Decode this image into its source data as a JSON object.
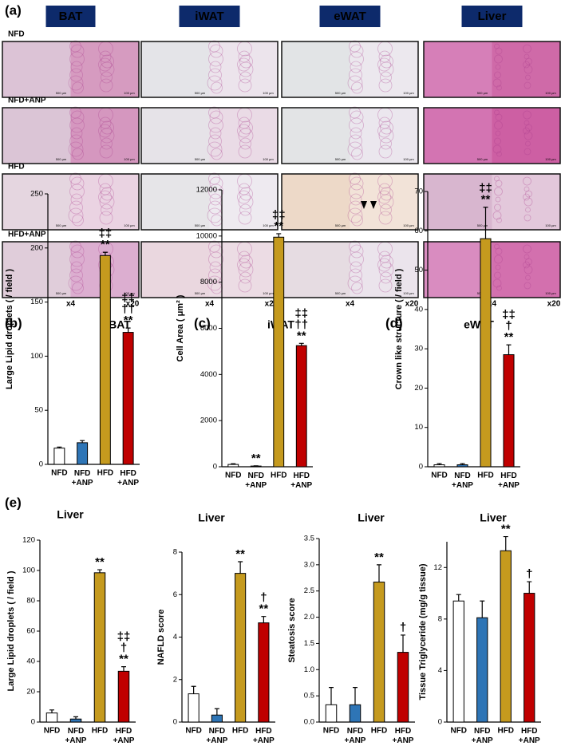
{
  "panel_a": {
    "label": "(a)",
    "columns": [
      "BAT",
      "iWAT",
      "eWAT",
      "Liver"
    ],
    "rows": [
      "NFD",
      "NFD+ANP",
      "HFD",
      "HFD+ANP"
    ],
    "magnifications": [
      "x4",
      "x20"
    ],
    "scale_bars": [
      "500 µm",
      "100 µm"
    ]
  },
  "chart_data": [
    {
      "type": "bar",
      "panel": "(b)",
      "title": "BAT",
      "y_label": "Large Lipid droplets ( / field )",
      "categories": [
        "NFD",
        "NFD\n+ANP",
        "HFD",
        "HFD\n+ANP"
      ],
      "values": [
        15,
        20,
        193,
        122
      ],
      "errors": [
        1,
        2,
        3,
        4
      ],
      "colors": [
        "#ffffff",
        "#2e75b6",
        "#c59a1e",
        "#c00000"
      ],
      "significance": [
        null,
        null,
        "‡‡\n**",
        "‡‡\n††\n**"
      ],
      "ylim": [
        0,
        250
      ],
      "yticks": [
        0,
        50,
        100,
        150,
        200,
        250
      ]
    },
    {
      "type": "bar",
      "panel": "(c)",
      "title": "iWAT",
      "y_label": "Cell Area ( μm² )",
      "categories": [
        "NFD",
        "NFD\n+ANP",
        "HFD",
        "HFD\n+ANP"
      ],
      "values": [
        100,
        30,
        9950,
        5250
      ],
      "errors": [
        30,
        10,
        150,
        100
      ],
      "colors": [
        "#ffffff",
        "#2e75b6",
        "#c59a1e",
        "#c00000"
      ],
      "significance": [
        null,
        "**",
        "‡‡\n**",
        "‡‡\n††\n**"
      ],
      "ylim": [
        0,
        12000
      ],
      "yticks": [
        0,
        2000,
        4000,
        6000,
        8000,
        10000,
        12000
      ]
    },
    {
      "type": "bar",
      "panel": "(d)",
      "title": "eWAT",
      "y_label": "Crown like structure ( / field )",
      "categories": [
        "NFD",
        "NFD\n+ANP",
        "HFD",
        "HFD\n+ANP"
      ],
      "values": [
        0.5,
        0.5,
        58,
        28.5
      ],
      "errors": [
        0.3,
        0.3,
        8,
        2.5
      ],
      "colors": [
        "#ffffff",
        "#2e75b6",
        "#c59a1e",
        "#c00000"
      ],
      "significance": [
        null,
        null,
        "‡‡\n**",
        "‡‡\n†\n**"
      ],
      "ylim": [
        0,
        70
      ],
      "yticks": [
        0,
        10,
        20,
        30,
        40,
        50,
        60,
        70
      ]
    },
    {
      "type": "bar",
      "panel": "(e)",
      "title": "Liver",
      "y_label": "Large Lipid droplets ( / field )",
      "categories": [
        "NFD",
        "NFD\n+ANP",
        "HFD",
        "HFD\n+ANP"
      ],
      "values": [
        6,
        2,
        98.5,
        33.5
      ],
      "errors": [
        2,
        1.5,
        2,
        3
      ],
      "colors": [
        "#ffffff",
        "#2e75b6",
        "#c59a1e",
        "#c00000"
      ],
      "significance": [
        null,
        null,
        "**",
        "‡‡\n†\n**"
      ],
      "ylim": [
        0,
        120
      ],
      "yticks": [
        0,
        20,
        40,
        60,
        80,
        100,
        120
      ]
    },
    {
      "type": "bar",
      "title": "Liver",
      "y_label": "NAFLD score",
      "categories": [
        "NFD",
        "NFD\n+ANP",
        "HFD",
        "HFD\n+ANP"
      ],
      "values": [
        1.33,
        0.33,
        7.0,
        4.67
      ],
      "errors": [
        0.35,
        0.3,
        0.55,
        0.3
      ],
      "colors": [
        "#ffffff",
        "#2e75b6",
        "#c59a1e",
        "#c00000"
      ],
      "significance": [
        null,
        null,
        "**",
        "†\n**"
      ],
      "ylim": [
        0,
        8
      ],
      "yticks": [
        0,
        2,
        4,
        6,
        8
      ]
    },
    {
      "type": "bar",
      "title": "Liver",
      "y_label": "Steatosis score",
      "categories": [
        "NFD",
        "NFD\n+ANP",
        "HFD",
        "HFD\n+ANP"
      ],
      "values": [
        0.33,
        0.33,
        2.67,
        1.33
      ],
      "errors": [
        0.33,
        0.33,
        0.33,
        0.33
      ],
      "colors": [
        "#ffffff",
        "#2e75b6",
        "#c59a1e",
        "#c00000"
      ],
      "significance": [
        null,
        null,
        "**",
        "†"
      ],
      "ylim": [
        0,
        3.5
      ],
      "yticks": [
        {
          "value": 0,
          "label": "0.0"
        },
        0.5,
        {
          "value": 1,
          "label": "1.0"
        },
        1.5,
        {
          "value": 2,
          "label": "2.0"
        },
        2.5,
        {
          "value": 3,
          "label": "3.0"
        },
        3.5
      ]
    },
    {
      "type": "bar",
      "title": "Liver",
      "y_label": "Tissue Triglyceride  (mg/g tissue)",
      "categories": [
        "NFD",
        "NFD\n+ANP",
        "HFD",
        "HFD\n+ANP"
      ],
      "values": [
        9.4,
        8.1,
        13.3,
        10.0
      ],
      "errors": [
        0.5,
        1.3,
        1.1,
        0.9
      ],
      "colors": [
        "#ffffff",
        "#2e75b6",
        "#c59a1e",
        "#c00000"
      ],
      "significance": [
        null,
        null,
        "**",
        "†"
      ],
      "ylim": [
        0,
        14
      ],
      "yticks": [
        0,
        4,
        8,
        12
      ]
    }
  ]
}
